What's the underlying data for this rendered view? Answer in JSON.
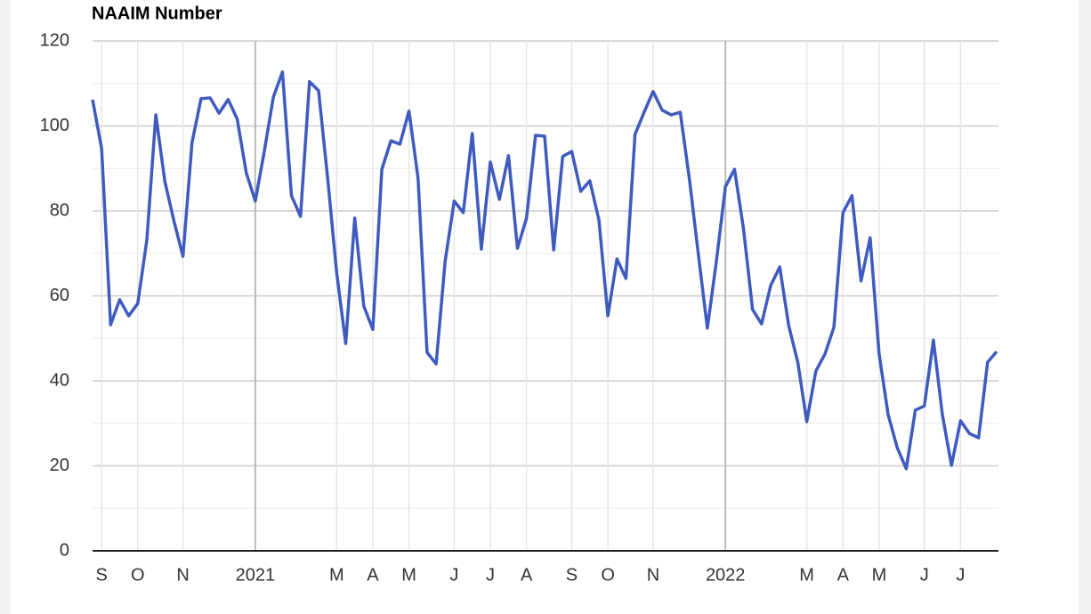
{
  "chart_data": {
    "type": "line",
    "title": "NAAIM Number",
    "categories": [
      null,
      "S",
      null,
      null,
      null,
      "O",
      null,
      null,
      null,
      null,
      "N",
      null,
      null,
      null,
      null,
      null,
      null,
      null,
      "2021",
      null,
      null,
      null,
      null,
      null,
      null,
      null,
      null,
      "M",
      null,
      null,
      null,
      "A",
      null,
      null,
      null,
      "M",
      null,
      null,
      null,
      null,
      "J",
      null,
      null,
      null,
      "J",
      null,
      null,
      null,
      "A",
      null,
      null,
      null,
      null,
      "S",
      null,
      null,
      null,
      "O",
      null,
      null,
      null,
      null,
      "N",
      null,
      null,
      null,
      null,
      null,
      null,
      null,
      "2022",
      null,
      null,
      null,
      null,
      null,
      null,
      null,
      null,
      "M",
      null,
      null,
      null,
      "A",
      null,
      null,
      null,
      "M",
      null,
      null,
      null,
      null,
      "J",
      null,
      null,
      null,
      "J",
      null,
      null,
      null,
      null
    ],
    "series": [
      {
        "name": "NAAIM Number",
        "color": "#3f5bbf",
        "values": [
          106.2,
          94.7,
          53.2,
          59.1,
          55.3,
          58.2,
          73.1,
          102.6,
          86.9,
          77.7,
          69.3,
          96.1,
          106.4,
          106.6,
          103.0,
          106.2,
          101.6,
          89.0,
          82.3,
          94.0,
          106.8,
          112.7,
          83.6,
          78.7,
          110.4,
          108.3,
          87.7,
          65.5,
          48.8,
          78.3,
          57.6,
          52.1,
          89.8,
          96.5,
          95.7,
          103.5,
          87.7,
          46.7,
          44.0,
          68.1,
          82.3,
          79.6,
          98.2,
          71.0,
          91.5,
          82.7,
          93.0,
          71.2,
          78.3,
          97.8,
          97.6,
          70.8,
          92.8,
          94.0,
          84.6,
          87.1,
          77.9,
          55.3,
          68.7,
          64.1,
          98.0,
          103.2,
          108.1,
          103.7,
          102.6,
          103.2,
          87.7,
          69.9,
          52.4,
          68.1,
          85.7,
          89.8,
          75.8,
          56.8,
          53.4,
          62.4,
          66.8,
          53.0,
          44.4,
          30.4,
          42.3,
          46.3,
          52.6,
          79.6,
          83.6,
          63.5,
          73.7,
          46.3,
          32.0,
          24.3,
          19.3,
          33.1,
          34.1,
          49.6,
          32.0,
          20.1,
          30.6,
          27.6,
          26.6,
          44.4,
          46.9
        ]
      }
    ],
    "ylim": [
      0,
      120
    ],
    "yticks": [
      0,
      20,
      40,
      60,
      80,
      100,
      120
    ],
    "grid": true
  }
}
